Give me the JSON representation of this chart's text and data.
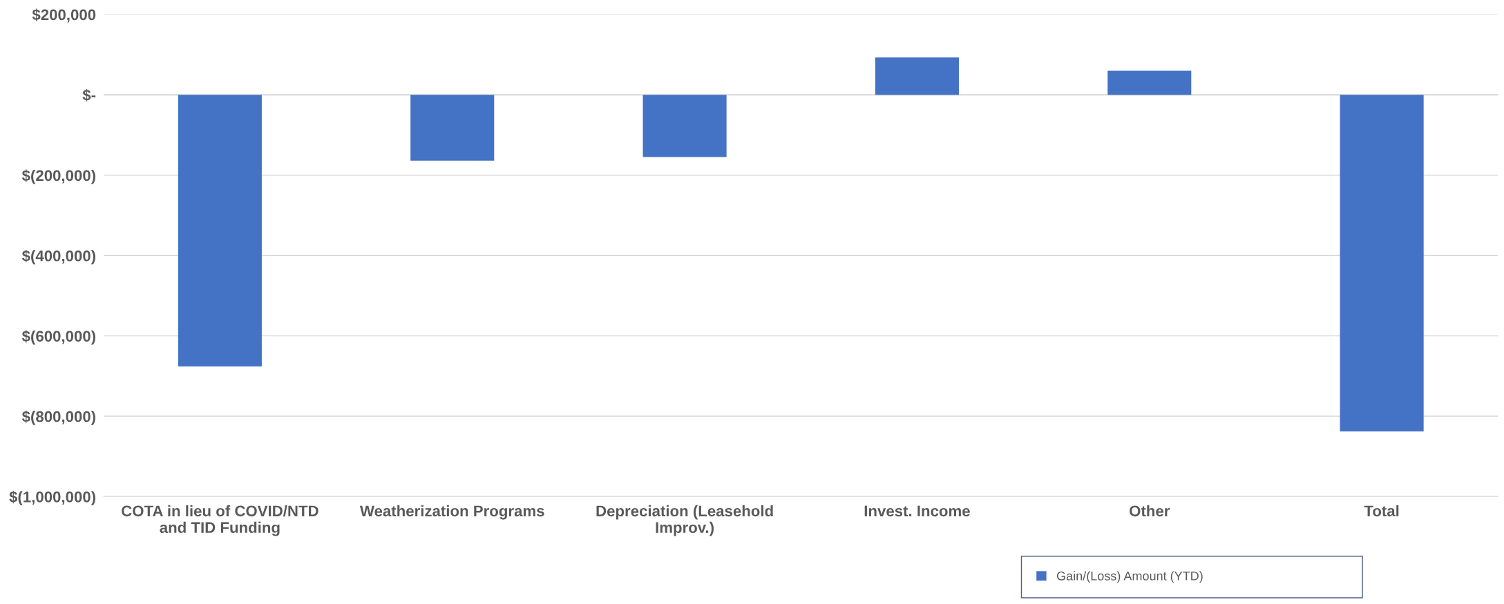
{
  "chart_data": {
    "type": "bar",
    "categories": [
      "COTA in lieu of COVID/NTD and TID Funding",
      "Weatherization Programs",
      "Depreciation (Leasehold Improv.)",
      "Invest. Income",
      "Other",
      "Total"
    ],
    "series": [
      {
        "name": "Gain/(Loss) Amount (YTD)",
        "color": "#4472c4",
        "values": [
          -676000,
          -164000,
          -155000,
          93000,
          60000,
          -838000
        ]
      }
    ],
    "ylim": [
      -1000000,
      200000
    ],
    "yticks": [
      {
        "value": 200000,
        "label": "$200,000"
      },
      {
        "value": 0,
        "label": "$-"
      },
      {
        "value": -200000,
        "label": "$(200,000)"
      },
      {
        "value": -400000,
        "label": "$(400,000)"
      },
      {
        "value": -600000,
        "label": "$(600,000)"
      },
      {
        "value": -800000,
        "label": "$(800,000)"
      },
      {
        "value": -1000000,
        "label": "$(1,000,000)"
      }
    ],
    "grid": "y",
    "legend": "bottom right"
  }
}
